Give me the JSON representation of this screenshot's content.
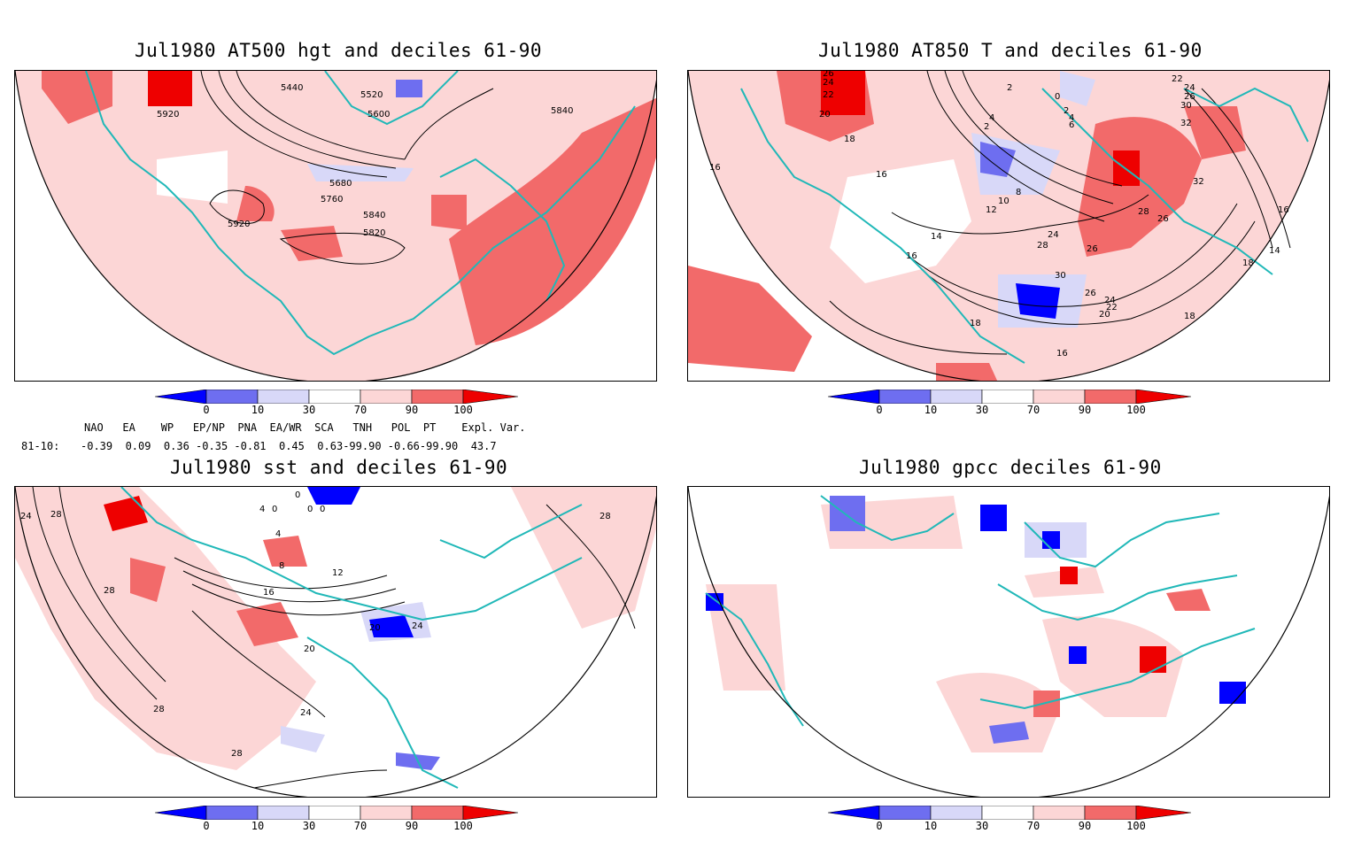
{
  "panels": [
    {
      "id": "p1",
      "title": "Jul1980 AT500 hgt and deciles 61-90"
    },
    {
      "id": "p2",
      "title": "Jul1980 AT850 T and deciles 61-90"
    },
    {
      "id": "p3",
      "title": "Jul1980 sst and deciles 61-90"
    },
    {
      "id": "p4",
      "title": "Jul1980 gpcc deciles 61-90"
    }
  ],
  "colorbar": {
    "labels": [
      "0",
      "10",
      "30",
      "70",
      "90",
      "100"
    ],
    "colors": [
      "#0000ff",
      "#6e6ef0",
      "#d8d8f8",
      "#ffffff",
      "#fcd6d6",
      "#f26a6a",
      "#ee0000"
    ]
  },
  "contour_labels": {
    "p1": [
      "5920",
      "5440",
      "5520",
      "5600",
      "5840",
      "5680",
      "5760",
      "5840",
      "5920",
      "5820"
    ],
    "p2": [
      "26",
      "24",
      "22",
      "20",
      "18",
      "2",
      "0",
      "2",
      "4",
      "2",
      "4",
      "6",
      "16",
      "16",
      "8",
      "10",
      "12",
      "14",
      "16",
      "24",
      "28",
      "26",
      "30",
      "26",
      "24",
      "22",
      "20",
      "16",
      "18",
      "22",
      "24",
      "26",
      "30",
      "32",
      "32",
      "28",
      "26",
      "16",
      "18",
      "14",
      "18"
    ],
    "p3": [
      "24",
      "28",
      "28",
      "0",
      "4",
      "0",
      "0",
      "0",
      "4",
      "8",
      "12",
      "16",
      "20",
      "20",
      "24",
      "24",
      "28",
      "28",
      "28"
    ]
  },
  "indices": {
    "header": "NAO   EA    WP   EP/NP  PNA  EA/WR  SCA   TNH   POL  PT    Expl. Var.",
    "row_label": "81-10:",
    "row_values": "-0.39  0.09  0.36 -0.35 -0.81  0.45  0.63-99.90 -0.66-99.90  43.7"
  },
  "colors": {
    "frame": "#000000",
    "coast": "#20b8b8",
    "grid": "#9a9a9a"
  }
}
